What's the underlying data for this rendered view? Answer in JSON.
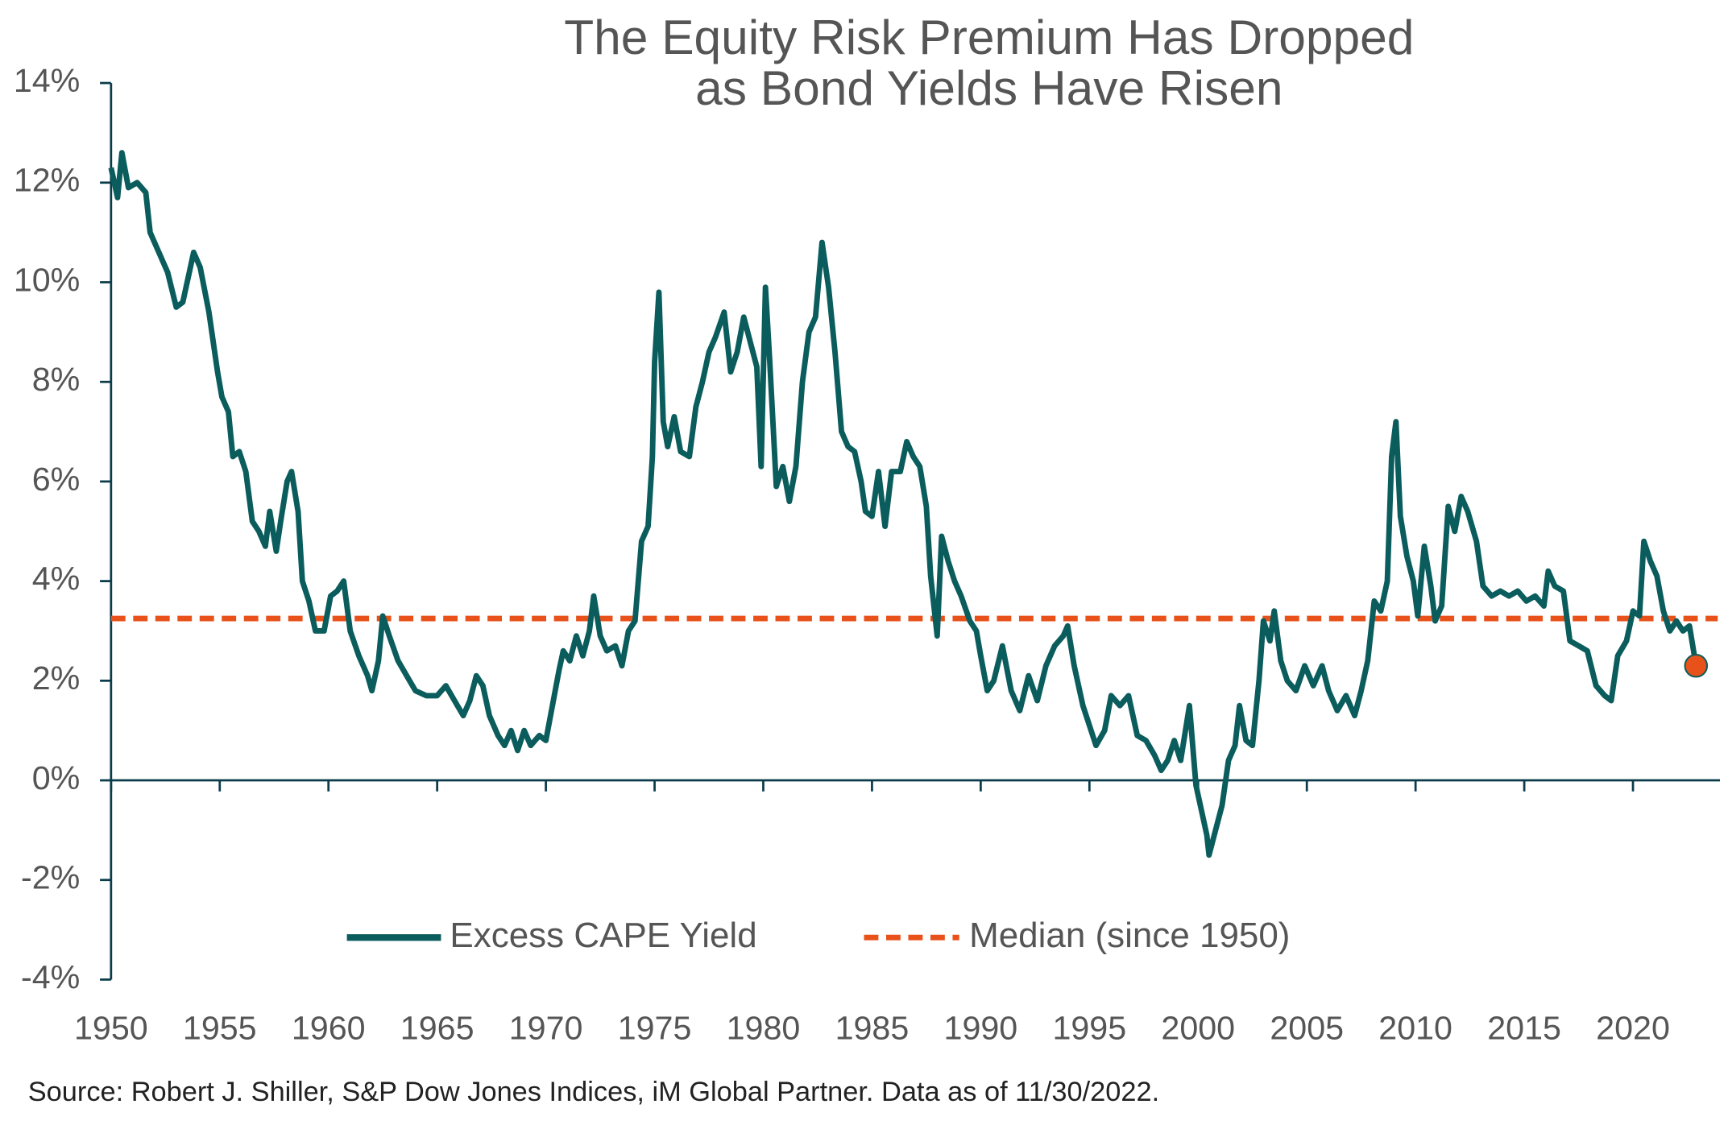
{
  "chart_data": {
    "type": "line",
    "title": [
      "The Equity Risk Premium Has Dropped",
      "as Bond Yields Have Risen"
    ],
    "source": "Source: Robert J. Shiller, S&P Dow Jones Indices, iM Global Partner. Data as of 11/30/2022.",
    "xlim": [
      1950,
      2024
    ],
    "xticks": [
      1950,
      1955,
      1960,
      1965,
      1970,
      1975,
      1980,
      1985,
      1990,
      1995,
      2000,
      2005,
      2010,
      2015,
      2020
    ],
    "ylim": [
      -4,
      14
    ],
    "yticks": [
      {
        "value": -4,
        "label": "-4%"
      },
      {
        "value": -2,
        "label": "-2%"
      },
      {
        "value": 0,
        "label": "0%"
      },
      {
        "value": 2,
        "label": "2%"
      },
      {
        "value": 4,
        "label": "4%"
      },
      {
        "value": 6,
        "label": "6%"
      },
      {
        "value": 8,
        "label": "8%"
      },
      {
        "value": 10,
        "label": "10%"
      },
      {
        "value": 12,
        "label": "12%"
      },
      {
        "value": 14,
        "label": "14%"
      }
    ],
    "x": [
      1950.0,
      1950.3,
      1950.5,
      1950.8,
      1951.2,
      1951.6,
      1951.8,
      1952.2,
      1952.6,
      1953.0,
      1953.3,
      1953.6,
      1953.8,
      1954.1,
      1954.5,
      1954.9,
      1955.1,
      1955.4,
      1955.6,
      1955.9,
      1956.2,
      1956.5,
      1956.8,
      1957.1,
      1957.3,
      1957.6,
      1957.8,
      1958.1,
      1958.3,
      1958.6,
      1958.8,
      1959.1,
      1959.4,
      1959.8,
      1960.1,
      1960.4,
      1960.7,
      1961.0,
      1961.4,
      1961.8,
      1962.0,
      1962.3,
      1962.5,
      1962.8,
      1963.2,
      1963.6,
      1964.0,
      1964.5,
      1965.0,
      1965.4,
      1965.8,
      1966.2,
      1966.5,
      1966.8,
      1967.1,
      1967.4,
      1967.8,
      1968.1,
      1968.4,
      1968.7,
      1969.0,
      1969.3,
      1969.7,
      1970.0,
      1970.3,
      1970.6,
      1970.8,
      1971.1,
      1971.4,
      1971.7,
      1972.0,
      1972.2,
      1972.5,
      1972.8,
      1973.2,
      1973.5,
      1973.8,
      1974.1,
      1974.4,
      1974.7,
      1974.9,
      1975.0,
      1975.2,
      1975.4,
      1975.6,
      1975.9,
      1976.2,
      1976.6,
      1976.9,
      1977.2,
      1977.5,
      1977.8,
      1978.2,
      1978.5,
      1978.8,
      1979.1,
      1979.4,
      1979.7,
      1979.9,
      1980.1,
      1980.3,
      1980.6,
      1980.9,
      1981.2,
      1981.5,
      1981.8,
      1982.1,
      1982.4,
      1982.7,
      1983.0,
      1983.3,
      1983.6,
      1983.9,
      1984.2,
      1984.5,
      1984.7,
      1985.0,
      1985.3,
      1985.6,
      1985.9,
      1986.3,
      1986.6,
      1986.9,
      1987.2,
      1987.5,
      1987.7,
      1988.0,
      1988.2,
      1988.5,
      1988.8,
      1989.1,
      1989.5,
      1989.8,
      1990.0,
      1990.3,
      1990.6,
      1991.0,
      1991.4,
      1991.8,
      1992.2,
      1992.6,
      1993.0,
      1993.4,
      1993.8,
      1994.0,
      1994.3,
      1994.7,
      1995.0,
      1995.3,
      1995.7,
      1996.0,
      1996.4,
      1996.8,
      1997.2,
      1997.6,
      1998.0,
      1998.3,
      1998.6,
      1998.9,
      1999.2,
      1999.6,
      1999.9,
      2000.2,
      2000.4,
      2000.5,
      2000.8,
      2001.1,
      2001.4,
      2001.7,
      2001.9,
      2002.2,
      2002.5,
      2002.8,
      2003.0,
      2003.3,
      2003.5,
      2003.8,
      2004.1,
      2004.5,
      2004.9,
      2005.3,
      2005.7,
      2006.0,
      2006.4,
      2006.8,
      2007.2,
      2007.5,
      2007.8,
      2008.1,
      2008.4,
      2008.7,
      2008.9,
      2009.1,
      2009.3,
      2009.6,
      2009.9,
      2010.1,
      2010.4,
      2010.7,
      2010.9,
      2011.2,
      2011.5,
      2011.8,
      2012.1,
      2012.4,
      2012.8,
      2013.1,
      2013.5,
      2013.9,
      2014.3,
      2014.7,
      2015.1,
      2015.5,
      2015.9,
      2016.1,
      2016.4,
      2016.8,
      2017.1,
      2017.5,
      2017.9,
      2018.3,
      2018.7,
      2019.0,
      2019.3,
      2019.7,
      2020.0,
      2020.3,
      2020.5,
      2020.8,
      2021.1,
      2021.4,
      2021.7,
      2022.0,
      2022.3,
      2022.6,
      2022.9
    ],
    "series": [
      {
        "name": "Excess CAPE Yield",
        "color": "#0b5c5c",
        "values": [
          12.3,
          11.7,
          12.6,
          11.9,
          12.0,
          11.8,
          11.0,
          10.6,
          10.2,
          9.5,
          9.6,
          10.2,
          10.6,
          10.3,
          9.4,
          8.2,
          7.7,
          7.4,
          6.5,
          6.6,
          6.2,
          5.2,
          5.0,
          4.7,
          5.4,
          4.6,
          5.2,
          6.0,
          6.2,
          5.4,
          4.0,
          3.6,
          3.0,
          3.0,
          3.7,
          3.8,
          4.0,
          3.0,
          2.5,
          2.1,
          1.8,
          2.4,
          3.3,
          2.9,
          2.4,
          2.1,
          1.8,
          1.7,
          1.7,
          1.9,
          1.6,
          1.3,
          1.6,
          2.1,
          1.9,
          1.3,
          0.9,
          0.7,
          1.0,
          0.6,
          1.0,
          0.7,
          0.9,
          0.8,
          1.5,
          2.2,
          2.6,
          2.4,
          2.9,
          2.5,
          3.0,
          3.7,
          2.9,
          2.6,
          2.7,
          2.3,
          3.0,
          3.2,
          4.8,
          5.1,
          6.5,
          8.4,
          9.8,
          7.2,
          6.7,
          7.3,
          6.6,
          6.5,
          7.5,
          8.0,
          8.6,
          8.9,
          9.4,
          8.2,
          8.6,
          9.3,
          8.8,
          8.3,
          6.3,
          9.9,
          8.4,
          5.9,
          6.3,
          5.6,
          6.3,
          8.0,
          9.0,
          9.3,
          10.8,
          9.9,
          8.6,
          7.0,
          6.7,
          6.6,
          6.0,
          5.4,
          5.3,
          6.2,
          5.1,
          6.2,
          6.2,
          6.8,
          6.5,
          6.3,
          5.5,
          4.1,
          2.9,
          4.9,
          4.4,
          4.0,
          3.7,
          3.2,
          3.0,
          2.5,
          1.8,
          2.0,
          2.7,
          1.8,
          1.4,
          2.1,
          1.6,
          2.3,
          2.7,
          2.9,
          3.1,
          2.3,
          1.5,
          1.1,
          0.7,
          1.0,
          1.7,
          1.5,
          1.7,
          0.9,
          0.8,
          0.5,
          0.2,
          0.4,
          0.8,
          0.4,
          1.5,
          -0.1,
          -0.7,
          -1.1,
          -1.5,
          -1.0,
          -0.5,
          0.4,
          0.7,
          1.5,
          0.8,
          0.7,
          2.0,
          3.2,
          2.8,
          3.4,
          2.4,
          2.0,
          1.8,
          2.3,
          1.9,
          2.3,
          1.8,
          1.4,
          1.7,
          1.3,
          1.8,
          2.4,
          3.6,
          3.4,
          4.0,
          6.5,
          7.2,
          5.3,
          4.5,
          4.0,
          3.3,
          4.7,
          3.9,
          3.2,
          3.5,
          5.5,
          5.0,
          5.7,
          5.4,
          4.8,
          3.9,
          3.7,
          3.8,
          3.7,
          3.8,
          3.6,
          3.7,
          3.5,
          4.2,
          3.9,
          3.8,
          2.8,
          2.7,
          2.6,
          1.9,
          1.7,
          1.6,
          2.5,
          2.8,
          3.4,
          3.3,
          4.8,
          4.4,
          4.1,
          3.4,
          3.0,
          3.2,
          3.0,
          3.1,
          2.3
        ]
      }
    ],
    "median": {
      "name": "Median (since 1950)",
      "value": 3.25,
      "color": "#e8521a"
    },
    "endpoint_color": "#e8521a"
  }
}
